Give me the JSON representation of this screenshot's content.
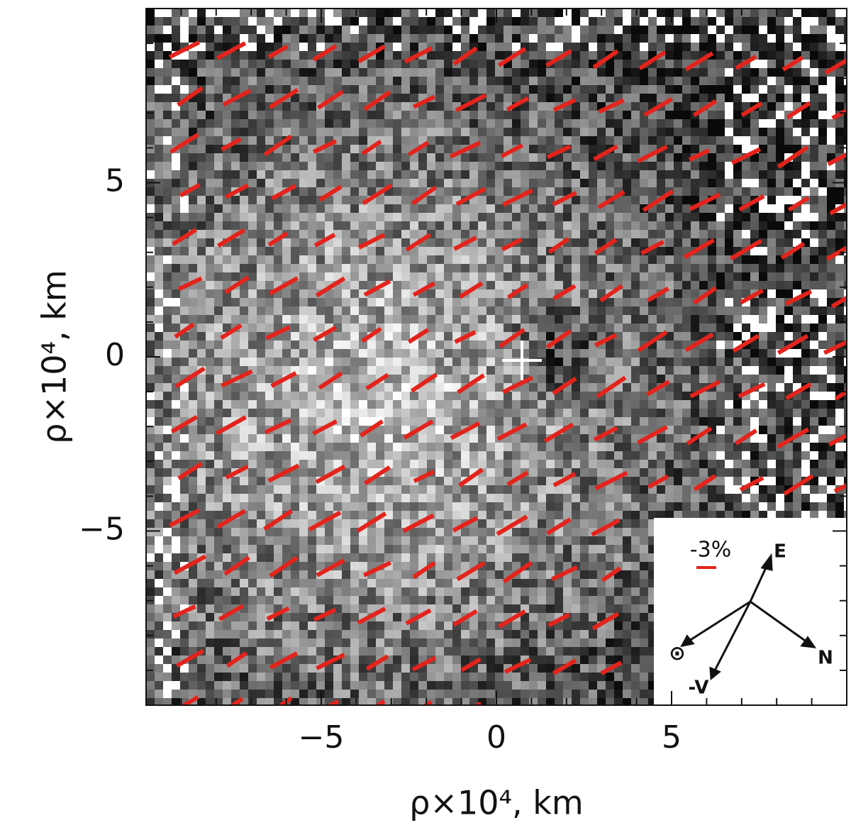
{
  "chart_data": {
    "type": "polarization-map",
    "xlabel": "ρ×10⁴, km",
    "ylabel": "ρ×10⁴, km",
    "xlim": [
      -10,
      10
    ],
    "ylim": [
      -10,
      10
    ],
    "xticks": [
      {
        "value": -5,
        "label": "−5"
      },
      0,
      5
    ],
    "yticks": [
      {
        "value": -5,
        "label": "−5"
      },
      0,
      5
    ],
    "xminorticks": [
      -9,
      -8,
      -7,
      -6,
      -4,
      -3,
      -2,
      -1,
      1,
      2,
      3,
      4,
      6,
      7,
      8,
      9
    ],
    "yminorticks": [
      -9,
      -8,
      -7,
      -6,
      -4,
      -3,
      -2,
      -1,
      1,
      2,
      3,
      4,
      6,
      7,
      8,
      9
    ],
    "vector_color": "#e3241c",
    "legend": {
      "scale_label": "-3%",
      "directions": [
        "E",
        "N",
        "⊙",
        "-V"
      ]
    }
  }
}
